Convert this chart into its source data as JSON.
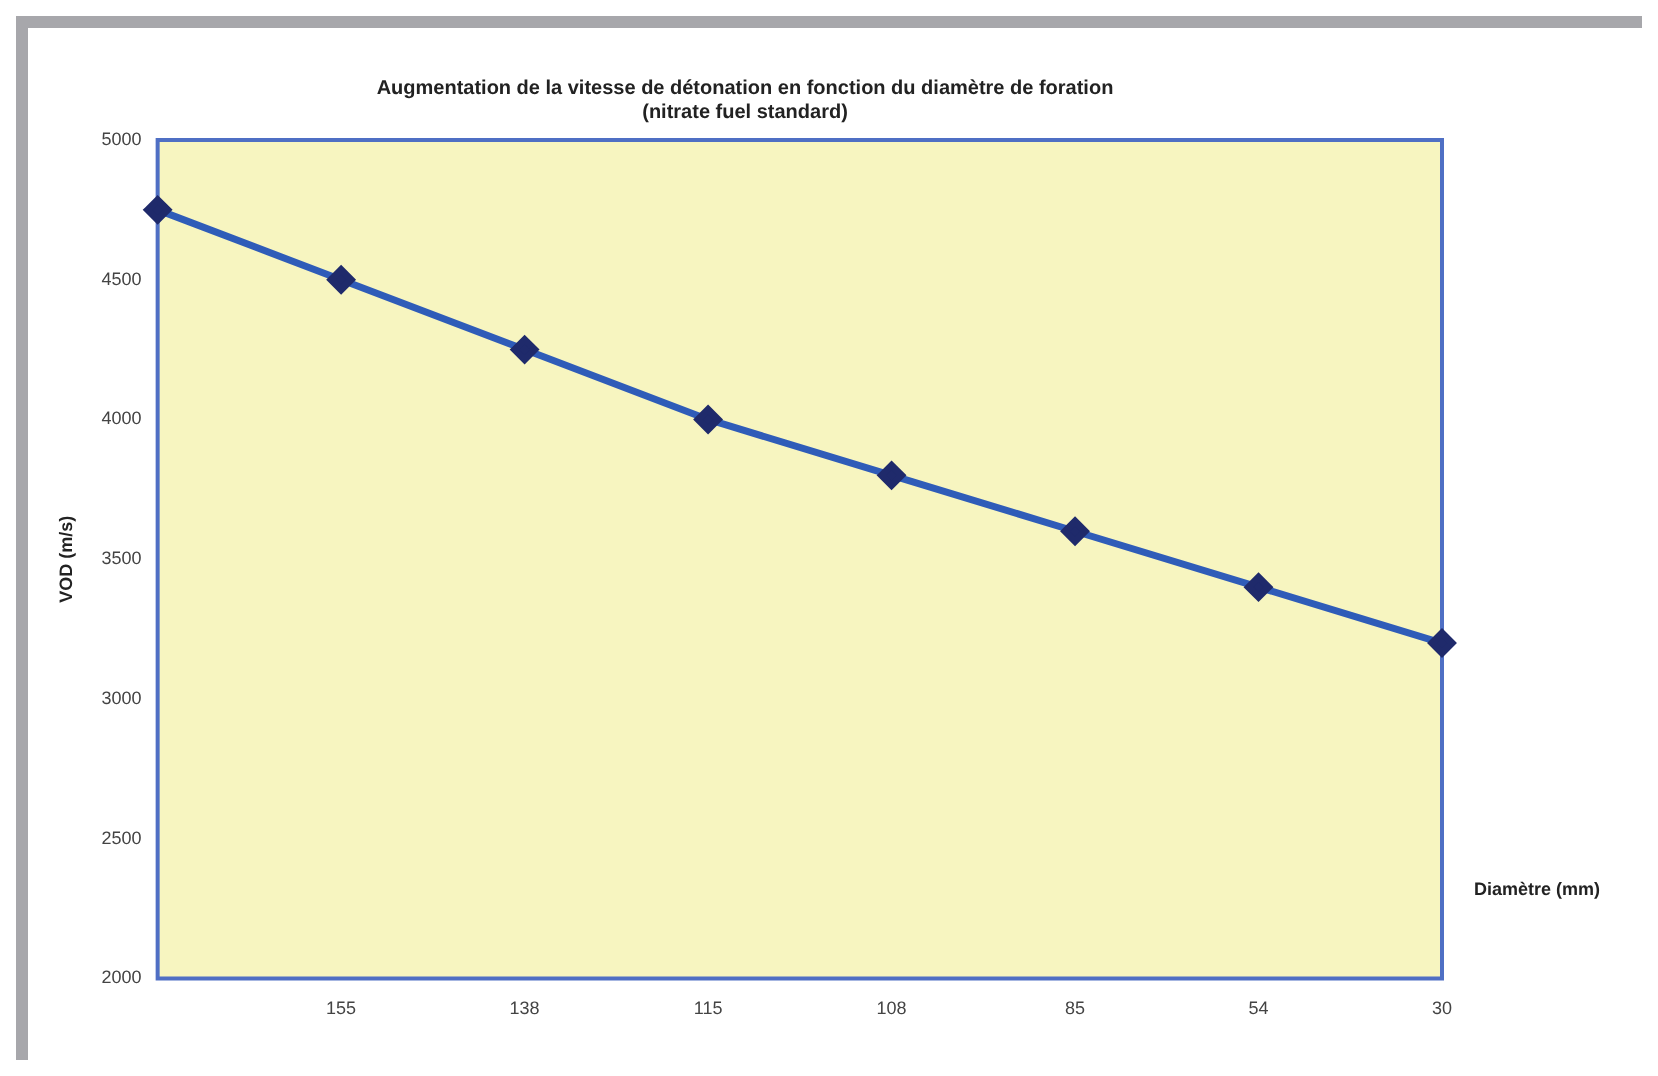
{
  "chart_data": {
    "type": "line",
    "title": "Augmentation de la vitesse de détonation en fonction du diamètre de foration",
    "subtitle": "(nitrate fuel standard)",
    "xlabel": "Diamètre (mm)",
    "ylabel": "VOD (m/s)",
    "categories": [
      null,
      "155",
      "138",
      "115",
      "108",
      "85",
      "54",
      "30"
    ],
    "series": [
      {
        "color": "#2f5cb8",
        "values": [
          4750,
          4500,
          4250,
          4000,
          3800,
          3600,
          3400,
          3200
        ]
      }
    ],
    "ylim": [
      2000,
      5000
    ],
    "yticks": [
      2000,
      2500,
      3000,
      3500,
      4000,
      4500,
      5000
    ],
    "grid": false,
    "legend": false,
    "marker": "diamond",
    "line_style": "solid"
  }
}
